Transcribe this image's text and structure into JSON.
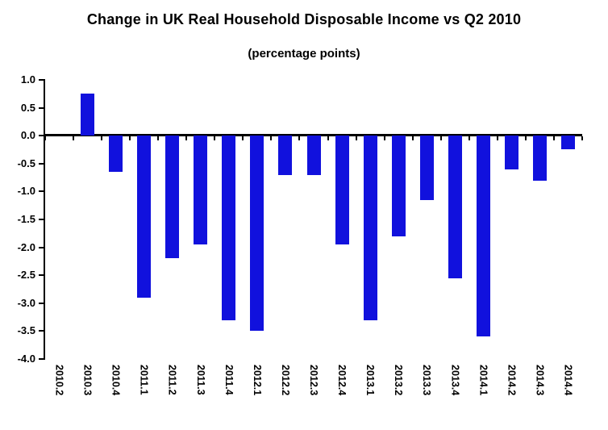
{
  "chart_data": {
    "type": "bar",
    "title": "Change in UK Real Household Disposable Income vs Q2 2010",
    "subtitle": "(percentage points)",
    "xlabel": "",
    "ylabel": "",
    "categories": [
      "2010.2",
      "2010.3",
      "2010.4",
      "2011.1",
      "2011.2",
      "2011.3",
      "2011.4",
      "2012.1",
      "2012.2",
      "2012.3",
      "2012.4",
      "2013.1",
      "2013.2",
      "2013.3",
      "2013.4",
      "2014.1",
      "2014.2",
      "2014.3",
      "2014.4"
    ],
    "values": [
      0,
      0.75,
      -0.65,
      -2.9,
      -2.2,
      -1.95,
      -3.3,
      -3.5,
      -0.7,
      -0.7,
      -1.95,
      -3.3,
      -1.8,
      -1.15,
      -2.55,
      -3.6,
      -0.6,
      -0.8,
      -0.25
    ],
    "ylim": [
      -4.0,
      1.0
    ],
    "yticks": [
      "1.0",
      "0.5",
      "0.0",
      "-0.5",
      "-1.0",
      "-1.5",
      "-2.0",
      "-2.5",
      "-3.0",
      "-3.5",
      "-4.0"
    ],
    "grid": false,
    "legend": false,
    "bar_color": "#1111dd",
    "axis_color": "#000000",
    "baseline": "Q2 2010"
  }
}
